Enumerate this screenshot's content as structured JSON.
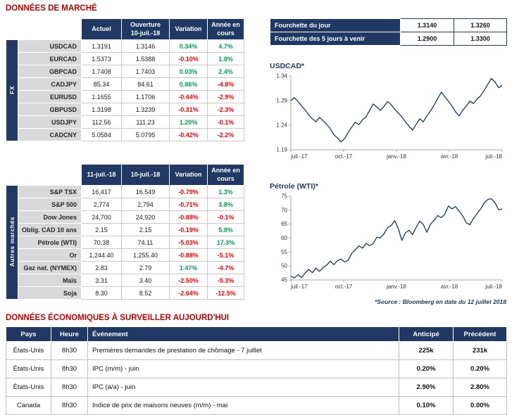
{
  "page": {
    "title_market": "DONNÉES DE MARCHÉ",
    "title_econ": "DONNÉES ÉCONOMIQUES À SURVEILLER AUJOURD'HUI",
    "source_note": "*Source : Bloomberg en date du 12 juillet 2018"
  },
  "colors": {
    "navy": "#1f3864",
    "title_red": "#c00000",
    "positive_green": "#00a050",
    "negative_red": "#ff0000",
    "label_gray": "#d9d9d9",
    "chart_line": "#17375e"
  },
  "fx_table": {
    "group_label": "FX",
    "headers": [
      "Actuel",
      "Ouverture\n10-juil.-18",
      "Variation",
      "Année en\ncours"
    ],
    "rows": [
      {
        "label": "USDCAD",
        "values": [
          "1.3191",
          "1.3146",
          "0.34%",
          "4.7%"
        ]
      },
      {
        "label": "EURCAD",
        "values": [
          "1.5373",
          "1.5388",
          "-0.10%",
          "1.8%"
        ]
      },
      {
        "label": "GBPCAD",
        "values": [
          "1.7408",
          "1.7403",
          "0.03%",
          "2.4%"
        ]
      },
      {
        "label": "CADJPY",
        "values": [
          "85.34",
          "84.61",
          "0.86%",
          "-4.8%"
        ]
      },
      {
        "label": "EURUSD",
        "values": [
          "1.1655",
          "1.1706",
          "-0.44%",
          "-2.9%"
        ]
      },
      {
        "label": "GBPUSD",
        "values": [
          "1.3198",
          "1.3239",
          "-0.31%",
          "-2.3%"
        ]
      },
      {
        "label": "USDJPY",
        "values": [
          "112.56",
          "111.23",
          "1.20%",
          "-0.1%"
        ]
      },
      {
        "label": "CADCNY",
        "values": [
          "5.0584",
          "5.0795",
          "-0.42%",
          "-2.2%"
        ]
      }
    ]
  },
  "range_table": {
    "rows": [
      {
        "label": "Fourchette du jour",
        "low": "1.3140",
        "high": "1.3260"
      },
      {
        "label": "Fourchette des 5 jours à venir",
        "low": "1.2900",
        "high": "1.3300"
      }
    ]
  },
  "markets_table": {
    "group_label": "Autres marchés",
    "headers": [
      "11-juil.-18",
      "10-juil.-18",
      "Variation",
      "Année en\ncours"
    ],
    "rows": [
      {
        "label": "S&P TSX",
        "values": [
          "16,417",
          "16,549",
          "-0.79%",
          "1.3%"
        ]
      },
      {
        "label": "S&P 500",
        "values": [
          "2,774",
          "2,794",
          "-0.71%",
          "3.8%"
        ]
      },
      {
        "label": "Dow Jones",
        "values": [
          "24,700",
          "24,920",
          "-0.88%",
          "-0.1%"
        ]
      },
      {
        "label": "Oblig. CAD 10 ans",
        "values": [
          "2.15",
          "2.15",
          "-0.19%",
          "5.8%"
        ]
      },
      {
        "label": "Pétrole (WTI)",
        "values": [
          "70.38",
          "74.11",
          "-5.03%",
          "17.3%"
        ]
      },
      {
        "label": "Or",
        "values": [
          "1,244.40",
          "1,255.40",
          "-0.88%",
          "-5.1%"
        ]
      },
      {
        "label": "Gaz nat. (NYMEX)",
        "values": [
          "2.83",
          "2.79",
          "1.47%",
          "-4.7%"
        ]
      },
      {
        "label": "Maïs",
        "values": [
          "3.31",
          "3.40",
          "-2.50%",
          "-5.3%"
        ]
      },
      {
        "label": "Soja",
        "values": [
          "8.30",
          "8.52",
          "-2.64%",
          "-12.5%"
        ]
      }
    ]
  },
  "chart_data": [
    {
      "type": "line",
      "title": "USDCAD*",
      "line_color": "#17375e",
      "ylim": [
        1.19,
        1.34
      ],
      "yticks": [
        1.19,
        1.24,
        1.29,
        1.34
      ],
      "ytick_labels": [
        "1.19",
        "1.24",
        "1.29",
        "1.34"
      ],
      "x_tick_labels": [
        "juil.-17",
        "oct.-17",
        "janv.-18",
        "avr.-18",
        "juil.-18"
      ],
      "values": [
        1.29,
        1.296,
        1.288,
        1.279,
        1.271,
        1.261,
        1.253,
        1.247,
        1.256,
        1.249,
        1.242,
        1.233,
        1.221,
        1.214,
        1.206,
        1.213,
        1.225,
        1.236,
        1.246,
        1.241,
        1.251,
        1.257,
        1.27,
        1.283,
        1.277,
        1.27,
        1.278,
        1.288,
        1.282,
        1.272,
        1.265,
        1.257,
        1.247,
        1.238,
        1.23,
        1.242,
        1.253,
        1.247,
        1.259,
        1.269,
        1.281,
        1.294,
        1.307,
        1.298,
        1.289,
        1.279,
        1.267,
        1.259,
        1.271,
        1.279,
        1.289,
        1.284,
        1.293,
        1.3,
        1.311,
        1.323,
        1.335,
        1.328,
        1.316,
        1.321
      ]
    },
    {
      "type": "line",
      "title": "Pétrole (WTI)*",
      "line_color": "#17375e",
      "ylim": [
        45,
        75
      ],
      "yticks": [
        45,
        50,
        55,
        60,
        65,
        70,
        75
      ],
      "ytick_labels": [
        "45",
        "50",
        "55",
        "60",
        "65",
        "70",
        "75"
      ],
      "x_tick_labels": [
        "juil.-17",
        "oct.-17",
        "janv.-18",
        "avr.-18",
        "juil.-18"
      ],
      "values": [
        46.3,
        45.7,
        46.9,
        45.9,
        47.5,
        48.8,
        47.6,
        49.2,
        48.1,
        49.5,
        50.3,
        51.7,
        50.5,
        51.9,
        52.5,
        51.4,
        52.1,
        54.5,
        55.8,
        57.2,
        56.4,
        58.1,
        57.3,
        58.0,
        60.3,
        60.1,
        61.5,
        63.7,
        64.5,
        66.3,
        63.4,
        59.2,
        61.9,
        62.8,
        61.3,
        63.9,
        66.1,
        64.9,
        62.1,
        65.0,
        66.4,
        68.1,
        67.3,
        68.6,
        71.5,
        70.5,
        71.3,
        69.6,
        67.9,
        65.5,
        64.8,
        67.0,
        68.8,
        70.5,
        72.6,
        73.9,
        74.1,
        72.7,
        70.2,
        70.4
      ]
    }
  ],
  "econ_table": {
    "headers": [
      "Pays",
      "Heure",
      "Événement",
      "Anticipé",
      "Précédent"
    ],
    "rows": [
      {
        "pays": "États-Unis",
        "heure": "8h30",
        "evenement": "Premières demandes de prestation de chômage - 7 juillet",
        "anticipe": "225k",
        "precedent": "231k"
      },
      {
        "pays": "États-Unis",
        "heure": "8h30",
        "evenement": "IPC (m/m) - juin",
        "anticipe": "0.20%",
        "precedent": "0.20%"
      },
      {
        "pays": "États-Unis",
        "heure": "8h30",
        "evenement": "IPC (a/a) - juin",
        "anticipe": "2.90%",
        "precedent": "2.80%"
      },
      {
        "pays": "Canada",
        "heure": "8h30",
        "evenement": "Indice de prix de maisons neuves (m/m) - mai",
        "anticipe": "0.10%",
        "precedent": "0.00%"
      }
    ]
  }
}
